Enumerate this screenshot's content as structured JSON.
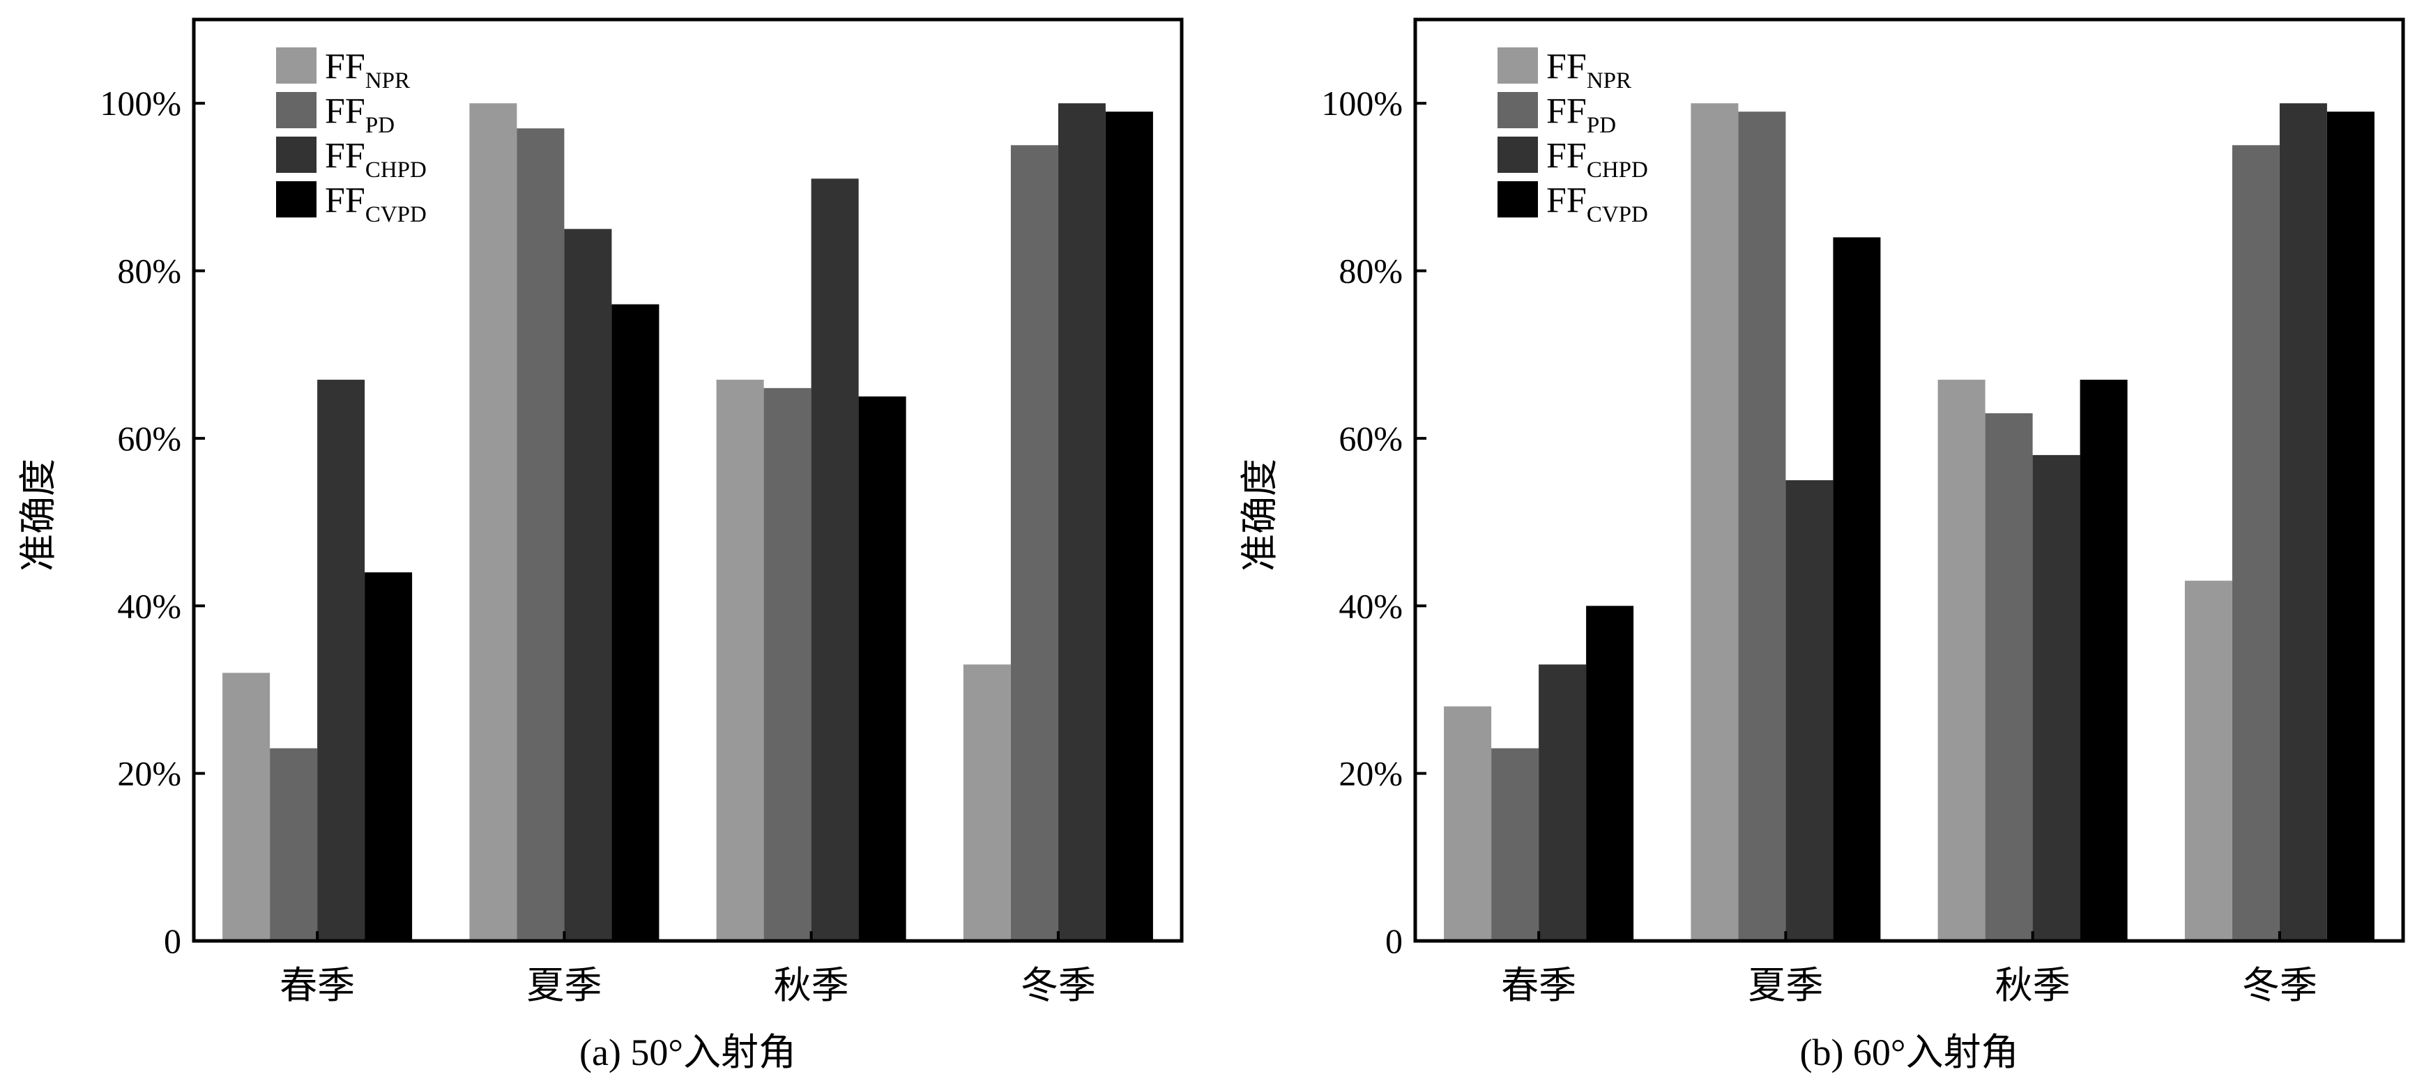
{
  "chart_data": [
    {
      "type": "bar",
      "caption": "(a) 50°入射角",
      "ylabel": "准确度",
      "categories": [
        "春季",
        "夏季",
        "秋季",
        "冬季"
      ],
      "ylim": [
        0,
        1.1
      ],
      "yticks": [
        0,
        0.2,
        0.4,
        0.6,
        0.8,
        1.0
      ],
      "ytick_labels": [
        "0",
        "20%",
        "40%",
        "60%",
        "80%",
        "100%"
      ],
      "grid": false,
      "legend_position": "top-left",
      "series": [
        {
          "name_main": "FF",
          "name_sub": "NPR",
          "color": "#999999",
          "values": [
            0.32,
            1.0,
            0.67,
            0.33
          ]
        },
        {
          "name_main": "FF",
          "name_sub": "PD",
          "color": "#666666",
          "values": [
            0.23,
            0.97,
            0.66,
            0.95
          ]
        },
        {
          "name_main": "FF",
          "name_sub": "CHPD",
          "color": "#333333",
          "values": [
            0.67,
            0.85,
            0.91,
            1.0
          ]
        },
        {
          "name_main": "FF",
          "name_sub": "CVPD",
          "color": "#000000",
          "values": [
            0.44,
            0.76,
            0.65,
            0.99
          ]
        }
      ]
    },
    {
      "type": "bar",
      "caption": "(b) 60°入射角",
      "ylabel": "准确度",
      "categories": [
        "春季",
        "夏季",
        "秋季",
        "冬季"
      ],
      "ylim": [
        0,
        1.1
      ],
      "yticks": [
        0,
        0.2,
        0.4,
        0.6,
        0.8,
        1.0
      ],
      "ytick_labels": [
        "0",
        "20%",
        "40%",
        "60%",
        "80%",
        "100%"
      ],
      "grid": false,
      "legend_position": "top-left",
      "series": [
        {
          "name_main": "FF",
          "name_sub": "NPR",
          "color": "#999999",
          "values": [
            0.28,
            1.0,
            0.67,
            0.43
          ]
        },
        {
          "name_main": "FF",
          "name_sub": "PD",
          "color": "#666666",
          "values": [
            0.23,
            0.99,
            0.63,
            0.95
          ]
        },
        {
          "name_main": "FF",
          "name_sub": "CHPD",
          "color": "#333333",
          "values": [
            0.33,
            0.55,
            0.58,
            1.0
          ]
        },
        {
          "name_main": "FF",
          "name_sub": "CVPD",
          "color": "#000000",
          "values": [
            0.4,
            0.84,
            0.67,
            0.99
          ]
        }
      ]
    }
  ]
}
